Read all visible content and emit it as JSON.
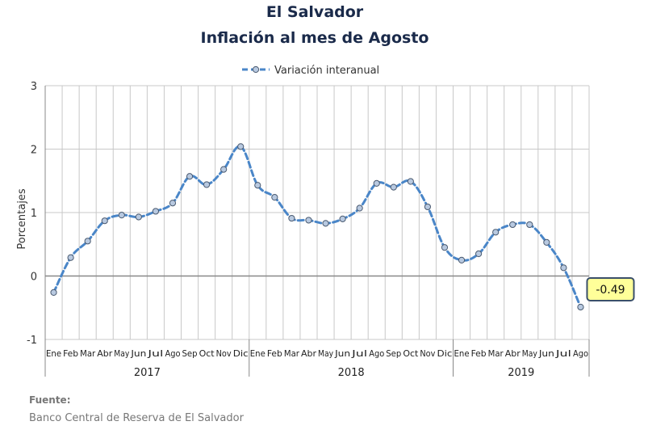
{
  "header": {
    "title": "El Salvador",
    "subtitle": "Inflación al mes de Agosto"
  },
  "source": {
    "label": "Fuente:",
    "text": "Banco Central de Reserva de El Salvador"
  },
  "colors": {
    "line": "#4a86c8",
    "marker_fill": "#b8c9e0",
    "marker_stroke": "#4a5a70",
    "grid": "#c8c8c8",
    "zero_line": "#888888",
    "callout_fill": "#ffff99",
    "callout_border": "#3a4f6a"
  },
  "chart_data": {
    "type": "line",
    "title": "El Salvador",
    "subtitle": "Inflación al mes de Agosto",
    "ylabel": "Porcentajes",
    "ylim": [
      -1,
      3
    ],
    "yticks": [
      -1,
      0,
      1,
      2,
      3
    ],
    "grid": true,
    "legend_position": "top-center",
    "categories": [
      "Ene",
      "Feb",
      "Mar",
      "Abr",
      "May",
      "Jun",
      "Jul",
      "Ago",
      "Sep",
      "Oct",
      "Nov",
      "Dic",
      "Ene",
      "Feb",
      "Mar",
      "Abr",
      "May",
      "Jun",
      "Jul",
      "Ago",
      "Sep",
      "Oct",
      "Nov",
      "Dic",
      "Ene",
      "Feb",
      "Mar",
      "Abr",
      "May",
      "Jun",
      "Jul",
      "Ago"
    ],
    "year_groups": [
      {
        "label": "2017",
        "count": 12
      },
      {
        "label": "2018",
        "count": 12
      },
      {
        "label": "2019",
        "count": 8
      }
    ],
    "series": [
      {
        "name": "Variación interanual",
        "values": [
          -0.26,
          0.29,
          0.55,
          0.87,
          0.96,
          0.93,
          1.02,
          1.15,
          1.57,
          1.44,
          1.68,
          2.04,
          1.43,
          1.24,
          0.91,
          0.88,
          0.83,
          0.9,
          1.07,
          1.46,
          1.4,
          1.49,
          1.09,
          0.45,
          0.25,
          0.35,
          0.69,
          0.81,
          0.81,
          0.53,
          0.13,
          -0.49
        ]
      }
    ],
    "callout": {
      "index": 31,
      "text": "-0.49"
    }
  }
}
